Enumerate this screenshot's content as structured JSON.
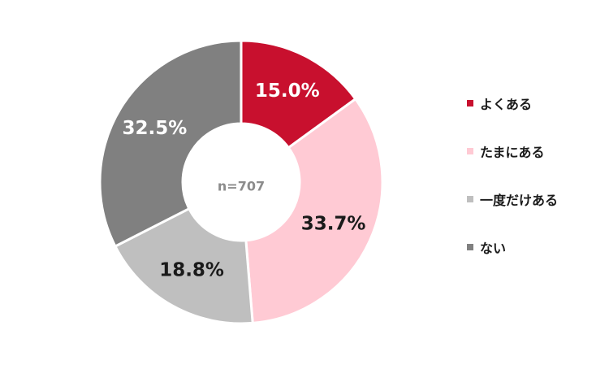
{
  "chart_data": {
    "type": "pie",
    "variant": "donut",
    "center_label": "n=707",
    "slices": [
      {
        "name": "よくある",
        "value": 15.0,
        "label": "15.0%",
        "color": "#c8102e",
        "label_color": "#ffffff"
      },
      {
        "name": "たまにある",
        "value": 33.7,
        "label": "33.7%",
        "color": "#ffcad4",
        "label_color": "#1a1a1a"
      },
      {
        "name": "一度だけある",
        "value": 18.8,
        "label": "18.8%",
        "color": "#bfbfbf",
        "label_color": "#1a1a1a"
      },
      {
        "name": "ない",
        "value": 32.5,
        "label": "32.5%",
        "color": "#808080",
        "label_color": "#ffffff"
      }
    ],
    "legend_position": "right"
  }
}
